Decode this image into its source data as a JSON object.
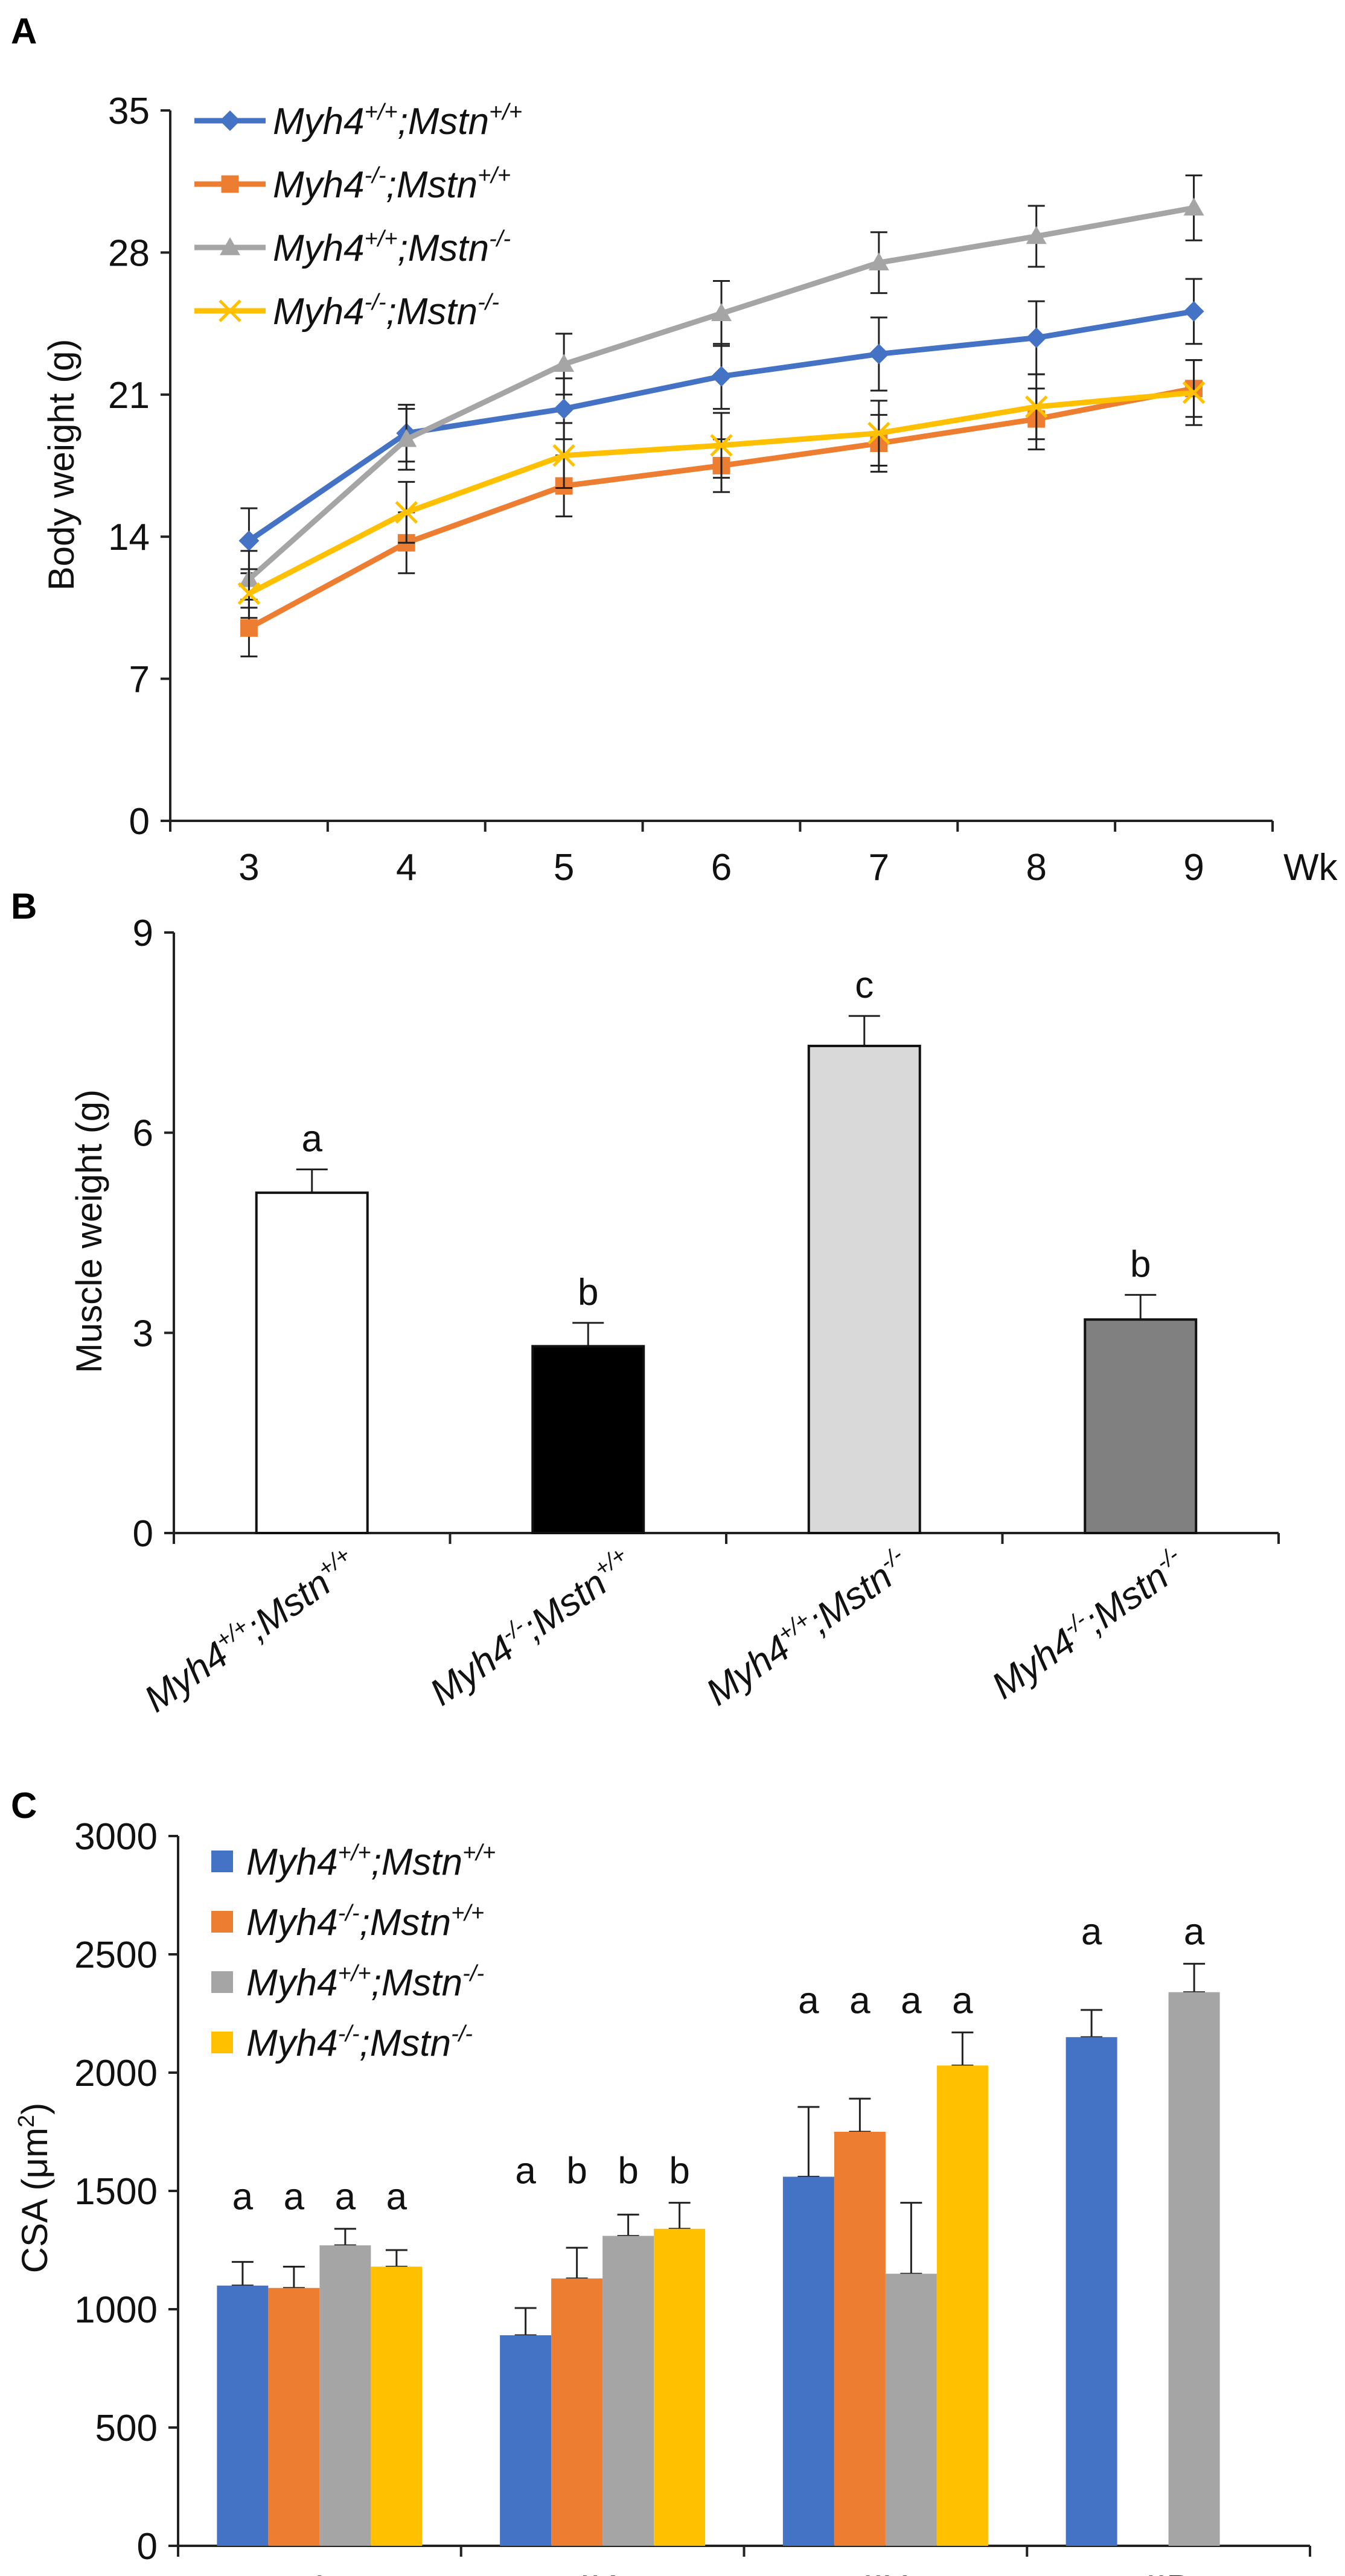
{
  "colors": {
    "blue": "#4472C4",
    "orange": "#ED7D31",
    "gray": "#A5A5A5",
    "yellow": "#FFC000",
    "axis": "#222222"
  },
  "panels": {
    "a": "A",
    "b": "B",
    "c": "C"
  },
  "genotypes": [
    {
      "base": "Myh4",
      "sup1": "+/+",
      "mid": ";Mstn",
      "sup2": "+/+"
    },
    {
      "base": "Myh4",
      "sup1": "-/-",
      "mid": ";Mstn",
      "sup2": "+/+"
    },
    {
      "base": "Myh4",
      "sup1": "+/+",
      "mid": ";Mstn",
      "sup2": "-/-"
    },
    {
      "base": "Myh4",
      "sup1": "-/-",
      "mid": ";Mstn",
      "sup2": "-/-"
    }
  ],
  "chart_data": [
    {
      "type": "line",
      "panel": "A",
      "xlabel": "Wk",
      "ylabel": "Body weight (g)",
      "x": [
        3,
        4,
        5,
        6,
        7,
        8,
        9
      ],
      "ylim": [
        0,
        35
      ],
      "yticks": [
        0,
        7,
        14,
        21,
        28,
        35
      ],
      "series": [
        {
          "genotype": 0,
          "color": "blue",
          "marker": "diamond",
          "values": [
            13.8,
            19.1,
            20.3,
            21.9,
            23.0,
            23.8,
            25.1
          ],
          "errors": [
            1.6,
            1.4,
            1.5,
            1.6,
            1.8,
            1.8,
            1.6
          ]
        },
        {
          "genotype": 1,
          "color": "orange",
          "marker": "square",
          "values": [
            9.5,
            13.7,
            16.5,
            17.5,
            18.6,
            19.8,
            21.3
          ],
          "errors": [
            1.4,
            1.5,
            1.5,
            1.3,
            1.4,
            1.5,
            1.4
          ]
        },
        {
          "genotype": 2,
          "color": "gray",
          "marker": "triangle",
          "values": [
            11.9,
            18.8,
            22.5,
            25.0,
            27.5,
            28.8,
            30.2
          ],
          "errors": [
            1.4,
            1.5,
            1.5,
            1.6,
            1.5,
            1.5,
            1.6
          ]
        },
        {
          "genotype": 3,
          "color": "yellow",
          "marker": "x",
          "values": [
            11.2,
            15.2,
            18.0,
            18.5,
            19.1,
            20.4,
            21.1
          ],
          "errors": [
            1.2,
            1.5,
            1.6,
            1.6,
            1.6,
            1.6,
            1.6
          ]
        }
      ]
    },
    {
      "type": "bar",
      "panel": "B",
      "ylabel": "Muscle weight (g)",
      "ylim": [
        0,
        9
      ],
      "yticks": [
        0,
        3,
        6,
        9
      ],
      "bars": [
        {
          "genotype": 0,
          "value": 5.1,
          "error": 0.35,
          "letter": "a",
          "fill": "#FFFFFF"
        },
        {
          "genotype": 1,
          "value": 2.8,
          "error": 0.35,
          "letter": "b",
          "fill": "#000000"
        },
        {
          "genotype": 2,
          "value": 7.3,
          "error": 0.45,
          "letter": "c",
          "fill": "#D9D9D9"
        },
        {
          "genotype": 3,
          "value": 3.2,
          "error": 0.37,
          "letter": "b",
          "fill": "#808080"
        }
      ]
    },
    {
      "type": "bar",
      "panel": "C",
      "ylabel": "CSA (μm²)",
      "ylabel_main": "CSA (μm",
      "ylabel_sup": "2",
      "ylabel_end": ")",
      "ylim": [
        0,
        3000
      ],
      "yticks": [
        0,
        500,
        1000,
        1500,
        2000,
        2500,
        3000
      ],
      "categories": [
        "I",
        "IIA",
        "IIX",
        "IIB"
      ],
      "groups": [
        {
          "category": "I",
          "bars": [
            {
              "genotype": 0,
              "color": "blue",
              "value": 1100,
              "error": 100,
              "letter": "a"
            },
            {
              "genotype": 1,
              "color": "orange",
              "value": 1090,
              "error": 90,
              "letter": "a"
            },
            {
              "genotype": 2,
              "color": "gray",
              "value": 1270,
              "error": 70,
              "letter": "a"
            },
            {
              "genotype": 3,
              "color": "yellow",
              "value": 1180,
              "error": 70,
              "letter": "a"
            }
          ]
        },
        {
          "category": "IIA",
          "bars": [
            {
              "genotype": 0,
              "color": "blue",
              "value": 890,
              "error": 115,
              "letter": "a"
            },
            {
              "genotype": 1,
              "color": "orange",
              "value": 1130,
              "error": 130,
              "letter": "b"
            },
            {
              "genotype": 2,
              "color": "gray",
              "value": 1310,
              "error": 90,
              "letter": "b"
            },
            {
              "genotype": 3,
              "color": "yellow",
              "value": 1340,
              "error": 110,
              "letter": "b"
            }
          ]
        },
        {
          "category": "IIX",
          "bars": [
            {
              "genotype": 0,
              "color": "blue",
              "value": 1560,
              "error": 295,
              "letter": "a"
            },
            {
              "genotype": 1,
              "color": "orange",
              "value": 1750,
              "error": 140,
              "letter": "a"
            },
            {
              "genotype": 2,
              "color": "gray",
              "value": 1150,
              "error": 300,
              "letter": "a"
            },
            {
              "genotype": 3,
              "color": "yellow",
              "value": 2030,
              "error": 140,
              "letter": "a"
            }
          ]
        },
        {
          "category": "IIB",
          "bars": [
            {
              "genotype": 0,
              "color": "blue",
              "value": 2150,
              "error": 115,
              "letter": "a"
            },
            {
              "genotype": 2,
              "color": "gray",
              "value": 2340,
              "error": 120,
              "letter": "a"
            }
          ]
        }
      ]
    }
  ]
}
